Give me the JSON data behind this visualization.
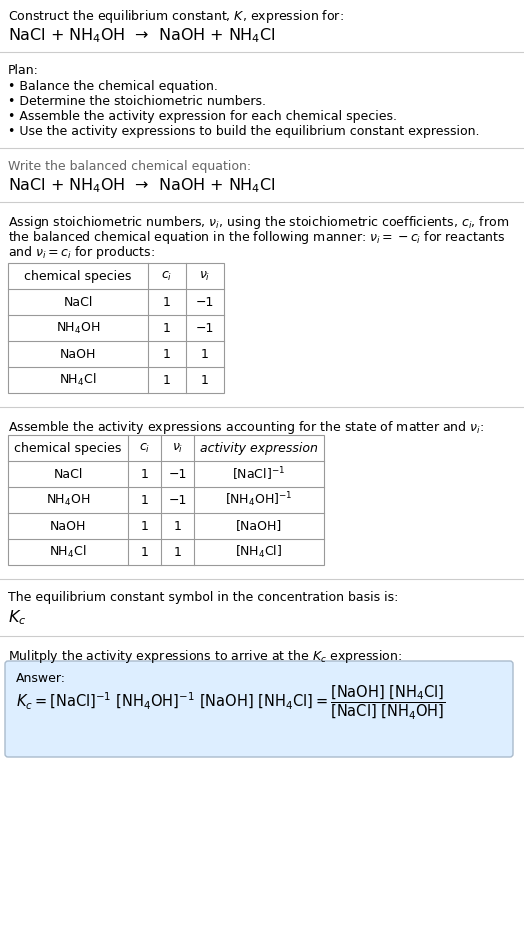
{
  "title_line1": "Construct the equilibrium constant, $K$, expression for:",
  "title_line2": "NaCl + NH$_4$OH  →  NaOH + NH$_4$Cl",
  "plan_header": "Plan:",
  "plan_items": [
    "• Balance the chemical equation.",
    "• Determine the stoichiometric numbers.",
    "• Assemble the activity expression for each chemical species.",
    "• Use the activity expressions to build the equilibrium constant expression."
  ],
  "balanced_header": "Write the balanced chemical equation:",
  "balanced_eq": "NaCl + NH$_4$OH  →  NaOH + NH$_4$Cl",
  "stoich_intro": "Assign stoichiometric numbers, $\\nu_i$, using the stoichiometric coefficients, $c_i$, from the balanced chemical equation in the following manner: $\\nu_i = -c_i$ for reactants and $\\nu_i = c_i$ for products:",
  "table1_headers": [
    "chemical species",
    "$c_i$",
    "$\\nu_i$"
  ],
  "table1_rows": [
    [
      "NaCl",
      "1",
      "−1"
    ],
    [
      "NH$_4$OH",
      "1",
      "−1"
    ],
    [
      "NaOH",
      "1",
      "1"
    ],
    [
      "NH$_4$Cl",
      "1",
      "1"
    ]
  ],
  "activity_intro": "Assemble the activity expressions accounting for the state of matter and $\\nu_i$:",
  "table2_headers": [
    "chemical species",
    "$c_i$",
    "$\\nu_i$",
    "activity expression"
  ],
  "table2_rows": [
    [
      "NaCl",
      "1",
      "−1",
      "[NaCl]$^{-1}$"
    ],
    [
      "NH$_4$OH",
      "1",
      "−1",
      "[NH$_4$OH]$^{-1}$"
    ],
    [
      "NaOH",
      "1",
      "1",
      "[NaOH]"
    ],
    [
      "NH$_4$Cl",
      "1",
      "1",
      "[NH$_4$Cl]"
    ]
  ],
  "kc_intro": "The equilibrium constant symbol in the concentration basis is:",
  "kc_symbol": "$K_c$",
  "multiply_intro": "Mulitply the activity expressions to arrive at the $K_c$ expression:",
  "answer_label": "Answer:",
  "bg_color": "#ffffff",
  "text_color": "#000000",
  "gray_text_color": "#666666",
  "table_line_color": "#999999",
  "answer_bg": "#ddeeff",
  "answer_border": "#aabbcc",
  "sep_color": "#cccccc"
}
